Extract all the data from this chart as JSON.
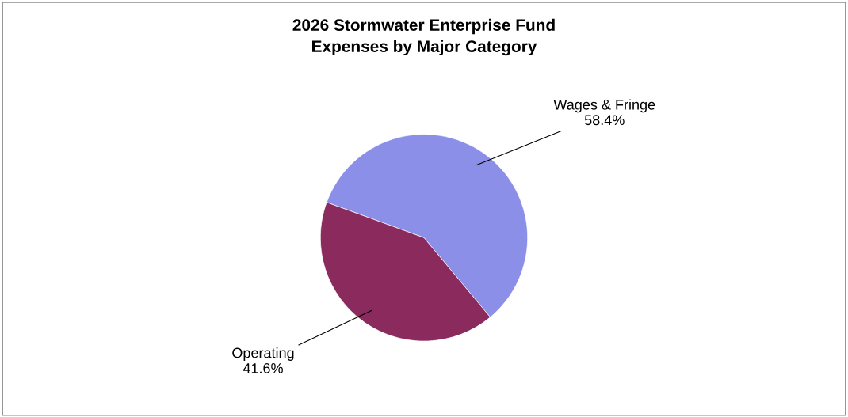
{
  "chart_data": {
    "type": "pie",
    "title": "2026 Stormwater Enterprise Fund\nExpenses by Major Category",
    "categories": [
      "Wages & Fringe",
      "Operating"
    ],
    "values": [
      58.4,
      41.6
    ],
    "value_labels": [
      "58.4%",
      "41.6%"
    ],
    "colors": [
      "#8b8fe8",
      "#8b2a5c"
    ],
    "legend": false
  }
}
